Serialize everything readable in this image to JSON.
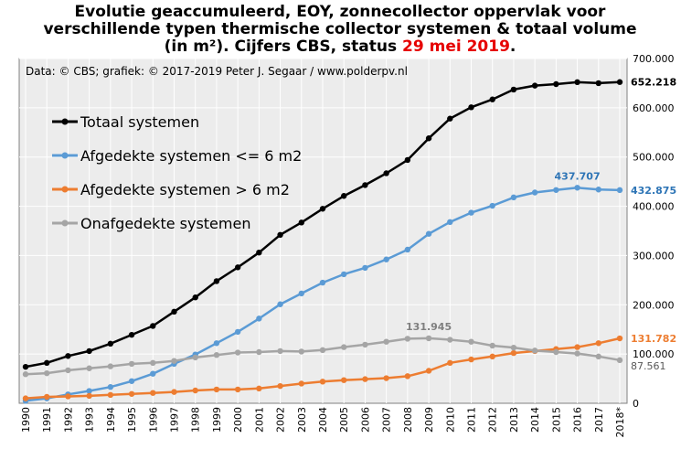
{
  "title": {
    "line1": "Evolutie geaccumuleerd, EOY, zonnecollector oppervlak voor",
    "line2": "verschillende  typen thermische collector systemen & totaal volume",
    "line3_prefix": "(in m²). Cijfers CBS, status ",
    "line3_date": "29 mei 2019",
    "line3_suffix": "."
  },
  "credit": "Data: © CBS;  grafiek: © 2017-2019 Peter J. Segaar / www.polderpv.nl",
  "colors": {
    "plot_bg": "#ececec",
    "grid": "#ffffff",
    "totaal": "#000000",
    "afgedekt_klein": "#5b9bd5",
    "afgedekt_groot": "#ed7d31",
    "onafgedekt": "#a5a5a5",
    "title_date": "#e60000"
  },
  "chart_data": {
    "type": "line",
    "title": "Evolutie geaccumuleerd, EOY, zonnecollector oppervlak voor verschillende typen thermische collector systemen & totaal volume (in m²). Cijfers CBS, status 29 mei 2019.",
    "x": [
      "1990",
      "1991",
      "1992",
      "1993",
      "1994",
      "1995",
      "1996",
      "1997",
      "1998",
      "1999",
      "2000",
      "2001",
      "2002",
      "2003",
      "2004",
      "2005",
      "2006",
      "2007",
      "2008",
      "2009",
      "2010",
      "2011",
      "2012",
      "2013",
      "2014",
      "2015",
      "2016",
      "2017",
      "2018*"
    ],
    "ylim": [
      0,
      700000
    ],
    "yticks": [
      0,
      100000,
      200000,
      300000,
      400000,
      500000,
      600000,
      700000
    ],
    "ytick_labels": [
      "0",
      "100.000",
      "200.000",
      "300.000",
      "400.000",
      "500.000",
      "600.000",
      "700.000"
    ],
    "grid": true,
    "legend_position": "top-left",
    "series": [
      {
        "name": "Totaal systemen",
        "color_key": "totaal",
        "values": [
          74000,
          82000,
          96000,
          106000,
          121000,
          139000,
          157000,
          186000,
          215000,
          248000,
          276000,
          306000,
          342000,
          367000,
          395000,
          421000,
          443000,
          467000,
          494000,
          538000,
          578000,
          601000,
          617000,
          637000,
          645000,
          648000,
          652000,
          650000,
          652218
        ]
      },
      {
        "name": "Afgedekte systemen <= 6 m2",
        "color_key": "afgedekt_klein",
        "values": [
          5000,
          10000,
          18000,
          25000,
          33000,
          45000,
          60000,
          80000,
          99000,
          122000,
          145000,
          172000,
          201000,
          223000,
          245000,
          262000,
          275000,
          292000,
          312000,
          344000,
          368000,
          387000,
          401000,
          418000,
          428000,
          433000,
          437707,
          434000,
          432875
        ]
      },
      {
        "name": "Afgedekte systemen > 6 m2",
        "color_key": "afgedekt_groot",
        "values": [
          10000,
          13000,
          14000,
          15000,
          17000,
          19000,
          21000,
          23000,
          26000,
          28000,
          28000,
          30000,
          35000,
          40000,
          44000,
          47000,
          49000,
          51000,
          55000,
          66000,
          82000,
          89000,
          95000,
          102000,
          106000,
          110000,
          114000,
          122000,
          131782
        ]
      },
      {
        "name": "Onafgedekte systemen",
        "color_key": "onafgedekt",
        "values": [
          59000,
          61000,
          67000,
          71000,
          75000,
          80000,
          82000,
          86000,
          93000,
          98000,
          103000,
          104000,
          106000,
          105000,
          108000,
          114000,
          119000,
          125000,
          131000,
          131945,
          129000,
          125000,
          117000,
          113000,
          107000,
          104000,
          101000,
          95000,
          87561
        ]
      }
    ],
    "annotations": [
      {
        "text": "652.218",
        "series": 0,
        "index": 28,
        "position": "right",
        "color": "#000000"
      },
      {
        "text": "437.707",
        "series": 1,
        "index": 26,
        "position": "above",
        "color": "#2e75b6"
      },
      {
        "text": "432.875",
        "series": 1,
        "index": 28,
        "position": "right",
        "color": "#2e75b6"
      },
      {
        "text": "131.782",
        "series": 2,
        "index": 28,
        "position": "right",
        "color": "#ed7d31"
      },
      {
        "text": "131.945",
        "series": 3,
        "index": 19,
        "position": "above",
        "color": "#7f7f7f"
      },
      {
        "text": "87.561",
        "series": 3,
        "index": 28,
        "position": "right",
        "color": "#595959"
      }
    ]
  }
}
